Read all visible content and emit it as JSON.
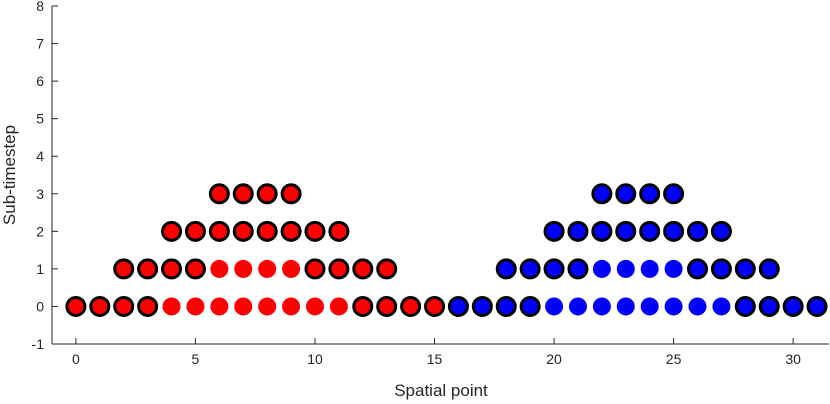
{
  "chart_data": {
    "type": "scatter",
    "title": "",
    "xlabel": "Spatial point",
    "ylabel": "Sub-timestep",
    "xlim": [
      -1,
      31.5
    ],
    "ylim": [
      -1,
      8
    ],
    "xticks": [
      0,
      5,
      10,
      15,
      20,
      25,
      30
    ],
    "yticks": [
      -1,
      0,
      1,
      2,
      3,
      4,
      5,
      6,
      7,
      8
    ],
    "grid": false,
    "colors": {
      "red": "#ff0000",
      "blue": "#0000ff",
      "outline": "#000000"
    },
    "series": [
      {
        "color": "red",
        "outlined": true,
        "points": [
          [
            0,
            0
          ],
          [
            1,
            0
          ],
          [
            2,
            0
          ],
          [
            3,
            0
          ],
          [
            12,
            0
          ],
          [
            13,
            0
          ],
          [
            14,
            0
          ],
          [
            15,
            0
          ],
          [
            2,
            1
          ],
          [
            3,
            1
          ],
          [
            4,
            1
          ],
          [
            5,
            1
          ],
          [
            10,
            1
          ],
          [
            11,
            1
          ],
          [
            12,
            1
          ],
          [
            13,
            1
          ],
          [
            4,
            2
          ],
          [
            5,
            2
          ],
          [
            6,
            2
          ],
          [
            7,
            2
          ],
          [
            8,
            2
          ],
          [
            9,
            2
          ],
          [
            10,
            2
          ],
          [
            11,
            2
          ],
          [
            6,
            3
          ],
          [
            7,
            3
          ],
          [
            8,
            3
          ],
          [
            9,
            3
          ]
        ]
      },
      {
        "color": "red",
        "outlined": false,
        "points": [
          [
            4,
            0
          ],
          [
            5,
            0
          ],
          [
            6,
            0
          ],
          [
            7,
            0
          ],
          [
            8,
            0
          ],
          [
            9,
            0
          ],
          [
            10,
            0
          ],
          [
            11,
            0
          ],
          [
            6,
            1
          ],
          [
            7,
            1
          ],
          [
            8,
            1
          ],
          [
            9,
            1
          ]
        ]
      },
      {
        "color": "blue",
        "outlined": true,
        "points": [
          [
            16,
            0
          ],
          [
            17,
            0
          ],
          [
            18,
            0
          ],
          [
            19,
            0
          ],
          [
            28,
            0
          ],
          [
            29,
            0
          ],
          [
            30,
            0
          ],
          [
            31,
            0
          ],
          [
            18,
            1
          ],
          [
            19,
            1
          ],
          [
            20,
            1
          ],
          [
            21,
            1
          ],
          [
            26,
            1
          ],
          [
            27,
            1
          ],
          [
            28,
            1
          ],
          [
            29,
            1
          ],
          [
            20,
            2
          ],
          [
            21,
            2
          ],
          [
            22,
            2
          ],
          [
            23,
            2
          ],
          [
            24,
            2
          ],
          [
            25,
            2
          ],
          [
            26,
            2
          ],
          [
            27,
            2
          ],
          [
            22,
            3
          ],
          [
            23,
            3
          ],
          [
            24,
            3
          ],
          [
            25,
            3
          ]
        ]
      },
      {
        "color": "blue",
        "outlined": false,
        "points": [
          [
            20,
            0
          ],
          [
            21,
            0
          ],
          [
            22,
            0
          ],
          [
            23,
            0
          ],
          [
            24,
            0
          ],
          [
            25,
            0
          ],
          [
            26,
            0
          ],
          [
            27,
            0
          ],
          [
            22,
            1
          ],
          [
            23,
            1
          ],
          [
            24,
            1
          ],
          [
            25,
            1
          ]
        ]
      }
    ]
  }
}
